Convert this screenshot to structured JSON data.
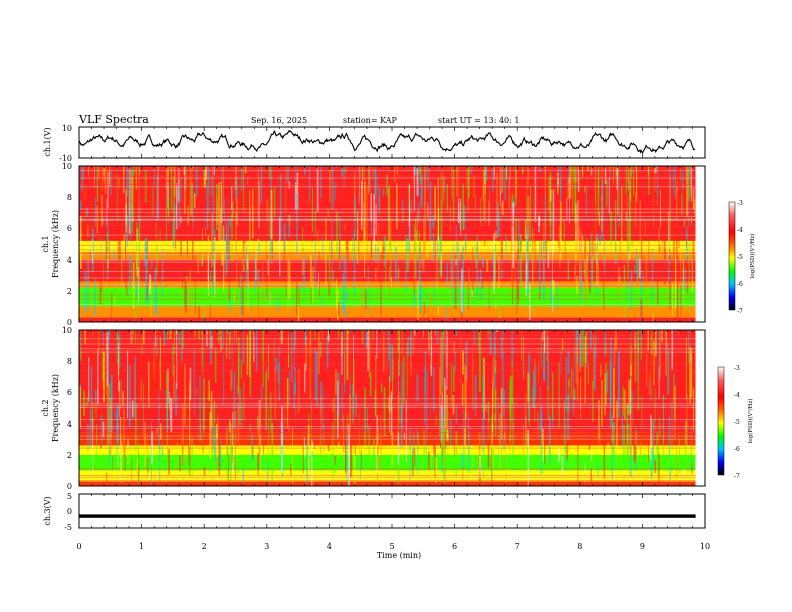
{
  "header": {
    "title": "VLF Spectra",
    "date": "Sep. 16, 2025",
    "station": "station= KAP",
    "start": "start  UT  =   13: 40: 1"
  },
  "colors": {
    "spectrum_scale": [
      "#000000",
      "#0000ff",
      "#00c0ff",
      "#00ff00",
      "#ffff00",
      "#ff8000",
      "#ff0000",
      "#ffffff"
    ]
  },
  "chart_data": [
    {
      "type": "line",
      "name": "ch1-waveform",
      "ylabel": "ch.1(V)",
      "ylim": [
        -10,
        10
      ],
      "yticks": [
        "10",
        "-10"
      ],
      "xlim": [
        0,
        9.85
      ],
      "summary": {
        "mean": 0,
        "approx_range": [
          -7,
          9
        ]
      }
    },
    {
      "type": "heatmap",
      "name": "ch1-spectrogram",
      "ylabel": [
        "ch.1",
        "Frequency (kHz)"
      ],
      "ylim": [
        0,
        10
      ],
      "yticks": [
        "0",
        "2",
        "4",
        "6",
        "8",
        "10"
      ],
      "xlim": [
        0,
        9.85
      ],
      "colorbar": {
        "label": "log(PSD)(V²/Hz)",
        "range": [
          -7,
          -3
        ],
        "ticks": [
          "-3",
          "-4",
          "-5",
          "-6",
          "-7"
        ]
      },
      "bands_khz": [
        {
          "from": 0.0,
          "to": 0.3,
          "level": -3.5
        },
        {
          "from": 0.3,
          "to": 1.0,
          "level": -4.2
        },
        {
          "from": 1.0,
          "to": 2.2,
          "level": -5.0
        },
        {
          "from": 2.2,
          "to": 2.6,
          "level": -4.2
        },
        {
          "from": 2.6,
          "to": 4.0,
          "level": -3.6
        },
        {
          "from": 4.0,
          "to": 4.5,
          "level": -4.4
        },
        {
          "from": 4.5,
          "to": 5.2,
          "level": -4.8
        },
        {
          "from": 5.2,
          "to": 10.0,
          "level": -3.3
        }
      ]
    },
    {
      "type": "heatmap",
      "name": "ch2-spectrogram",
      "ylabel": [
        "ch.2",
        "Frequency (kHz)"
      ],
      "ylim": [
        0,
        10
      ],
      "yticks": [
        "0",
        "2",
        "4",
        "6",
        "8",
        "10"
      ],
      "xlim": [
        0,
        9.85
      ],
      "colorbar": {
        "label": "log(PSD)(V²/Hz)",
        "range": [
          -7,
          -3
        ],
        "ticks": [
          "-3",
          "-4",
          "-5",
          "-6",
          "-7"
        ]
      },
      "bands_khz": [
        {
          "from": 0.0,
          "to": 0.3,
          "level": -4.0
        },
        {
          "from": 0.3,
          "to": 1.0,
          "level": -4.6
        },
        {
          "from": 1.0,
          "to": 2.0,
          "level": -5.1
        },
        {
          "from": 2.0,
          "to": 2.6,
          "level": -4.6
        },
        {
          "from": 2.6,
          "to": 3.4,
          "level": -4.0
        },
        {
          "from": 3.4,
          "to": 10.0,
          "level": -3.4
        }
      ]
    },
    {
      "type": "line",
      "name": "ch3-waveform",
      "ylabel": "ch.3(V)",
      "ylim": [
        -5,
        5
      ],
      "yticks": [
        "5",
        "0",
        "-5"
      ],
      "xlim": [
        0,
        9.85
      ],
      "summary": {
        "mean": -1.5,
        "approx_range": [
          -2,
          -1
        ]
      }
    }
  ],
  "xaxis": {
    "label": "Time (min)",
    "range": [
      0,
      10
    ],
    "ticks": [
      "0",
      "1",
      "2",
      "3",
      "4",
      "5",
      "6",
      "7",
      "8",
      "9",
      "10"
    ]
  }
}
